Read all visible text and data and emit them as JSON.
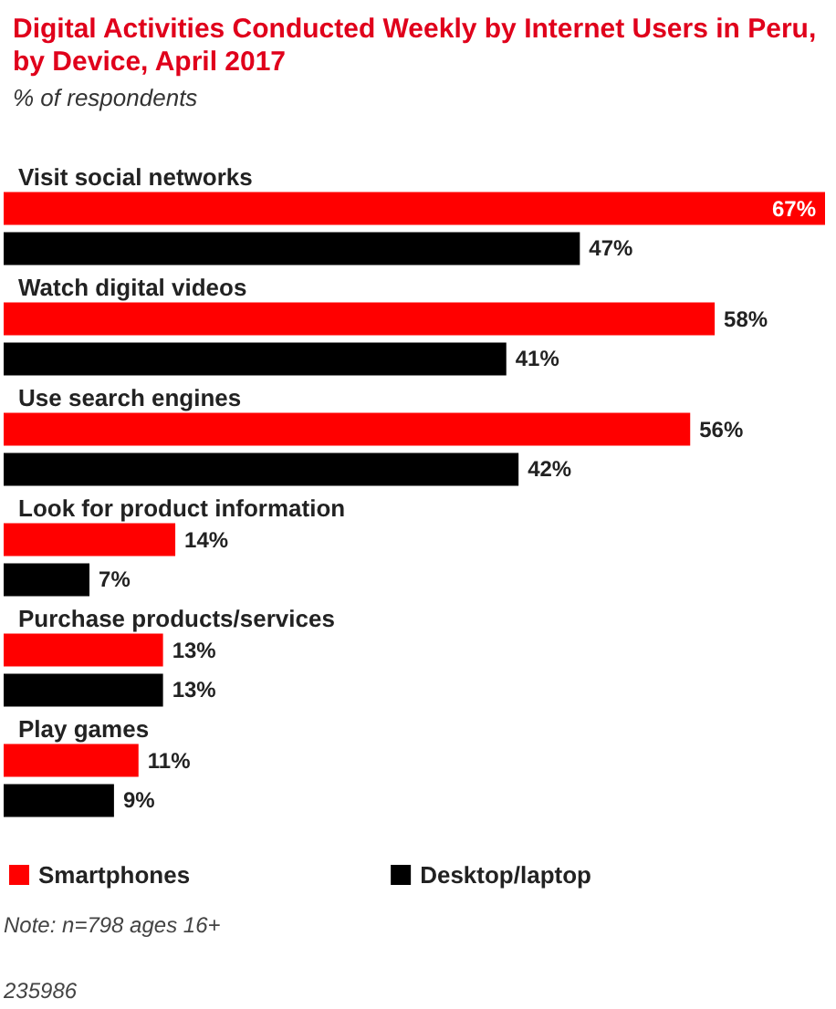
{
  "chart_data": {
    "type": "bar",
    "orientation": "horizontal",
    "title": "Digital Activities Conducted Weekly by Internet Users in Peru, by Device, April 2017",
    "subtitle": "% of respondents",
    "categories": [
      "Visit social networks",
      "Watch digital videos",
      "Use search engines",
      "Look for product information",
      "Purchase products/services",
      "Play games"
    ],
    "series": [
      {
        "name": "Smartphones",
        "color": "#ff0000",
        "values": [
          67,
          58,
          56,
          14,
          13,
          11
        ],
        "value_labels": [
          "67%",
          "58%",
          "56%",
          "14%",
          "13%",
          "11%"
        ]
      },
      {
        "name": "Desktop/laptop",
        "color": "#000000",
        "values": [
          47,
          41,
          42,
          7,
          13,
          9
        ],
        "value_labels": [
          "47%",
          "41%",
          "42%",
          "7%",
          "13%",
          "9%"
        ]
      }
    ],
    "legend": "bottom",
    "annotations": [
      "Note: n=798 ages 16+",
      "235986"
    ]
  }
}
